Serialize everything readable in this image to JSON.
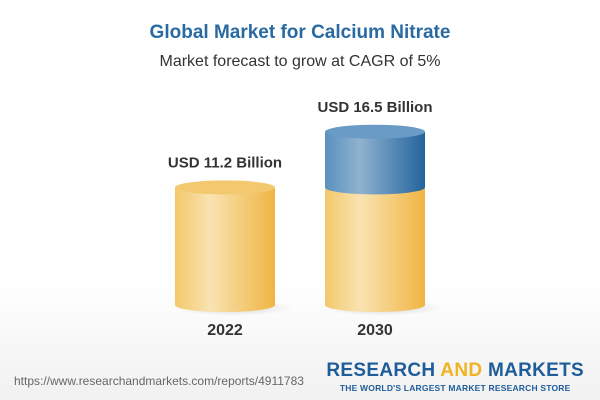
{
  "title": "Global Market for Calcium Nitrate",
  "subtitle": "Market forecast to grow at CAGR of 5%",
  "chart_data": {
    "type": "bar",
    "categories": [
      "2022",
      "2030"
    ],
    "values": [
      11.2,
      16.5
    ],
    "data_labels": [
      "USD 11.2 Billion",
      "USD 16.5 Billion"
    ],
    "title": "Global Market for Calcium Nitrate",
    "subtitle": "Market forecast to grow at CAGR of 5%",
    "colors": {
      "base": "#f0c060",
      "growth": "#4a86b8"
    }
  },
  "footer": {
    "url": "https://www.researchandmarkets.com/reports/4911783",
    "logo_part1": "RESEARCH ",
    "logo_part2": "AND",
    "logo_part3": " MARKETS",
    "logo_tagline": "THE WORLD'S LARGEST MARKET RESEARCH STORE"
  }
}
